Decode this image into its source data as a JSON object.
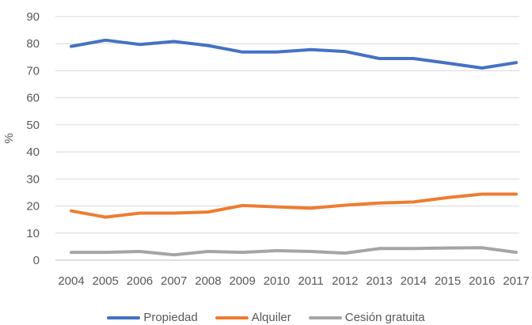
{
  "chart_data": {
    "type": "line",
    "title": "",
    "xlabel": "",
    "ylabel": "%",
    "ylim": [
      0,
      90
    ],
    "yticks": [
      0,
      10,
      20,
      30,
      40,
      50,
      60,
      70,
      80,
      90
    ],
    "grid": true,
    "legend_position": "bottom",
    "categories": [
      "2004",
      "2005",
      "2006",
      "2007",
      "2008",
      "2009",
      "2010",
      "2011",
      "2012",
      "2013",
      "2014",
      "2015",
      "2016",
      "2017"
    ],
    "series": [
      {
        "name": "Propiedad",
        "color": "#4472C4",
        "values": [
          79,
          81.3,
          79.7,
          80.8,
          79.3,
          76.9,
          76.9,
          77.8,
          77.1,
          74.5,
          74.5,
          72.8,
          71,
          73
        ]
      },
      {
        "name": "Alquiler",
        "color": "#ED7D31",
        "values": [
          18.2,
          15.9,
          17.4,
          17.4,
          17.8,
          20.2,
          19.7,
          19.2,
          20.3,
          21.1,
          21.5,
          23.1,
          24.4,
          24.4
        ]
      },
      {
        "name": "Cesión gratuita",
        "color": "#A5A5A5",
        "values": [
          2.9,
          2.9,
          3.2,
          2.0,
          3.2,
          2.9,
          3.5,
          3.2,
          2.6,
          4.3,
          4.3,
          4.5,
          4.6,
          2.9
        ]
      }
    ]
  }
}
